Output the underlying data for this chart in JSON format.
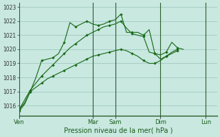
{
  "background_color": "#c8e8e0",
  "grid_color": "#a0c8c0",
  "line_color": "#1a6b1a",
  "marker_color": "#1a6b1a",
  "xlabel": "Pression niveau de la mer( hPa )",
  "ylim": [
    1015.3,
    1023.3
  ],
  "yticks": [
    1016,
    1017,
    1018,
    1019,
    1020,
    1021,
    1022,
    1023
  ],
  "x_day_labels": [
    "Ven",
    "Mar",
    "Sam",
    "Dim",
    "Lun"
  ],
  "x_day_positions": [
    0,
    13,
    17,
    25,
    33
  ],
  "xlim": [
    0,
    35
  ],
  "series": [
    [
      1015.6,
      1016.1,
      1017.0,
      1018.0,
      1019.2,
      1019.3,
      1019.4,
      1019.7,
      1020.5,
      1021.9,
      1021.6,
      1021.8,
      1022.0,
      1021.8,
      1021.7,
      1021.8,
      1022.0,
      1022.1,
      1022.5,
      1021.2,
      1021.2,
      1021.2,
      1021.0,
      1021.4,
      1019.7,
      1019.6,
      1019.8,
      1020.5,
      1020.1,
      1020.0
    ],
    [
      1015.7,
      1016.4,
      1017.1,
      1017.6,
      1018.1,
      1018.5,
      1018.9,
      1019.3,
      1019.7,
      1020.1,
      1020.4,
      1020.7,
      1021.0,
      1021.2,
      1021.4,
      1021.6,
      1021.7,
      1021.8,
      1022.0,
      1021.5,
      1021.1,
      1021.0,
      1020.9,
      1019.8,
      1019.7,
      1019.3,
      1019.5,
      1019.8,
      1020.0
    ],
    [
      1015.7,
      1016.2,
      1017.0,
      1017.3,
      1017.6,
      1017.9,
      1018.1,
      1018.3,
      1018.5,
      1018.7,
      1018.9,
      1019.1,
      1019.3,
      1019.5,
      1019.6,
      1019.7,
      1019.8,
      1019.9,
      1020.0,
      1019.9,
      1019.7,
      1019.5,
      1019.2,
      1019.0,
      1019.0,
      1019.2,
      1019.5,
      1019.7,
      1019.9
    ]
  ],
  "marker_every": 2,
  "vline_positions": [
    0,
    13,
    17,
    25,
    33
  ],
  "vline_color": "#2a5a2a",
  "vline_lw": 0.8
}
